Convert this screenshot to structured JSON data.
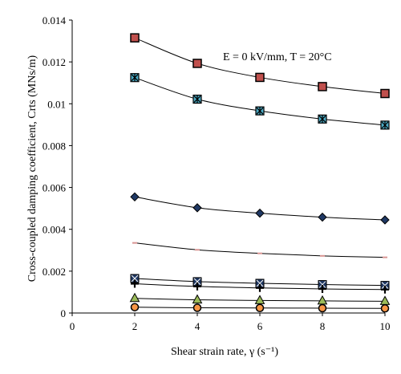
{
  "chart_data": {
    "type": "line",
    "title": "",
    "annotation": "E = 0 kV/mm, T = 20°C",
    "xlabel": "Shear strain rate, γ (s⁻¹)",
    "ylabel": "Cross-coupled damping coefficient, Crts (MNs/m)",
    "xlim": [
      0,
      10
    ],
    "ylim": [
      0,
      0.014
    ],
    "xticks": [
      "0",
      "2",
      "4",
      "6",
      "8",
      "10"
    ],
    "yticks": [
      "0",
      "0.002",
      "0.004",
      "0.006",
      "0.008",
      "0.01",
      "0.012",
      "0.014"
    ],
    "grid": false,
    "legend": "none",
    "x": [
      2,
      4,
      6,
      8,
      10
    ],
    "series": [
      {
        "values": [
          0.01315,
          0.01193,
          0.01126,
          0.01082,
          0.01049
        ],
        "marker": "square",
        "fill": "#c0504d",
        "stroke": "#000000"
      },
      {
        "values": [
          0.01125,
          0.01022,
          0.00966,
          0.00927,
          0.00898
        ],
        "marker": "square-star",
        "fill": "#4bacc6",
        "stroke": "#000000"
      },
      {
        "values": [
          0.00555,
          0.00503,
          0.00477,
          0.00458,
          0.00445
        ],
        "marker": "diamond",
        "fill": "#1f3864",
        "stroke": "#000000"
      },
      {
        "values": [
          0.00335,
          0.00302,
          0.00285,
          0.00273,
          0.00266
        ],
        "marker": "dash",
        "fill": "#d99694",
        "stroke": "#d99694"
      },
      {
        "values": [
          0.00165,
          0.0015,
          0.00142,
          0.00136,
          0.00132
        ],
        "marker": "square-cross",
        "fill": "#1f3864",
        "stroke": "#000000"
      },
      {
        "values": [
          0.0014,
          0.00127,
          0.0012,
          0.00115,
          0.00112
        ],
        "marker": "plus",
        "fill": "#000000",
        "stroke": "#000000"
      },
      {
        "values": [
          0.0007,
          0.00063,
          0.0006,
          0.00058,
          0.00056
        ],
        "marker": "triangle",
        "fill": "#9bbb59",
        "stroke": "#000000"
      },
      {
        "values": [
          0.00028,
          0.00025,
          0.00024,
          0.00023,
          0.00022
        ],
        "marker": "circle",
        "fill": "#f79646",
        "stroke": "#000000"
      }
    ]
  }
}
